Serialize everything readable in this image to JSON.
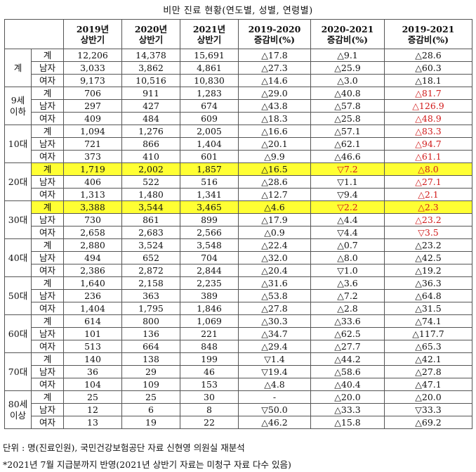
{
  "title": "비만 진료 현황(연도별, 성별, 연령별)",
  "header": {
    "h_2019": "2019년\n상반기",
    "h_2020": "2020년\n상반기",
    "h_2021": "2021년\n상반기",
    "h_c1920": "2019-2020\n증감비(%)",
    "h_c2021": "2020-2021\n증감비(%)",
    "h_c1921": "2019-2021\n증감비(%)"
  },
  "groups": [
    {
      "label": "계",
      "rows": [
        {
          "sub": "계",
          "v2019": "12,206",
          "v2020": "14,378",
          "v2021": "15,691",
          "c1920": "△17.8",
          "c2021": "△9.1",
          "c1921": "△28.6"
        },
        {
          "sub": "남자",
          "v2019": "3,033",
          "v2020": "3,862",
          "v2021": "4,861",
          "c1920": "△27.3",
          "c2021": "△25.9",
          "c1921": "△60.3"
        },
        {
          "sub": "여자",
          "v2019": "9,173",
          "v2020": "10,516",
          "v2021": "10,830",
          "c1920": "△14.6",
          "c2021": "△3.0",
          "c1921": "△18.1"
        }
      ]
    },
    {
      "label": "9세\n이하",
      "rows": [
        {
          "sub": "계",
          "v2019": "706",
          "v2020": "911",
          "v2021": "1,283",
          "c1920": "△29.0",
          "c2021": "△40.8",
          "c1921": "△81.7",
          "red": true
        },
        {
          "sub": "남자",
          "v2019": "297",
          "v2020": "427",
          "v2021": "674",
          "c1920": "△43.8",
          "c2021": "△57.8",
          "c1921": "△126.9",
          "red": true
        },
        {
          "sub": "여자",
          "v2019": "409",
          "v2020": "484",
          "v2021": "609",
          "c1920": "△18.3",
          "c2021": "△25.8",
          "c1921": "△48.9",
          "red": true
        }
      ]
    },
    {
      "label": "10대",
      "rows": [
        {
          "sub": "계",
          "v2019": "1,094",
          "v2020": "1,276",
          "v2021": "2,005",
          "c1920": "△16.6",
          "c2021": "△57.1",
          "c1921": "△83.3",
          "red": true
        },
        {
          "sub": "남자",
          "v2019": "721",
          "v2020": "866",
          "v2021": "1,404",
          "c1920": "△20.1",
          "c2021": "△62.1",
          "c1921": "△94.7",
          "red": true
        },
        {
          "sub": "여자",
          "v2019": "373",
          "v2020": "410",
          "v2021": "601",
          "c1920": "△9.9",
          "c2021": "△46.6",
          "c1921": "△61.1",
          "red": true
        }
      ]
    },
    {
      "label": "20대",
      "rows": [
        {
          "sub": "계",
          "v2019": "1,719",
          "v2020": "2,002",
          "v2021": "1,857",
          "c1920": "△16.5",
          "c2021": "▽7.2",
          "c1921": "△8.0",
          "red": true,
          "hl": true,
          "red2": true
        },
        {
          "sub": "남자",
          "v2019": "406",
          "v2020": "522",
          "v2021": "516",
          "c1920": "△28.6",
          "c2021": "▽1.1",
          "c1921": "△27.1",
          "red": true
        },
        {
          "sub": "여자",
          "v2019": "1,313",
          "v2020": "1,480",
          "v2021": "1,341",
          "c1920": "△12.7",
          "c2021": "▽9.4",
          "c1921": "△2.1",
          "red": true
        }
      ]
    },
    {
      "label": "30대",
      "rows": [
        {
          "sub": "계",
          "v2019": "3,388",
          "v2020": "3,544",
          "v2021": "3,465",
          "c1920": "△4.6",
          "c2021": "▽2.2",
          "c1921": "△2.3",
          "red": true,
          "hl": true,
          "red2": true
        },
        {
          "sub": "남자",
          "v2019": "730",
          "v2020": "861",
          "v2021": "899",
          "c1920": "△17.9",
          "c2021": "△4.4",
          "c1921": "△23.2",
          "red": true
        },
        {
          "sub": "여자",
          "v2019": "2,658",
          "v2020": "2,683",
          "v2021": "2,566",
          "c1920": "△0.9",
          "c2021": "▽4.4",
          "c1921": "▽3.5",
          "red": true
        }
      ]
    },
    {
      "label": "40대",
      "rows": [
        {
          "sub": "계",
          "v2019": "2,880",
          "v2020": "3,524",
          "v2021": "3,548",
          "c1920": "△22.4",
          "c2021": "△0.7",
          "c1921": "△23.2"
        },
        {
          "sub": "남자",
          "v2019": "494",
          "v2020": "652",
          "v2021": "704",
          "c1920": "△32.0",
          "c2021": "△8.0",
          "c1921": "△42.5"
        },
        {
          "sub": "여자",
          "v2019": "2,386",
          "v2020": "2,872",
          "v2021": "2,844",
          "c1920": "△20.4",
          "c2021": "▽1.0",
          "c1921": "△19.2"
        }
      ]
    },
    {
      "label": "50대",
      "rows": [
        {
          "sub": "계",
          "v2019": "1,640",
          "v2020": "2,158",
          "v2021": "2,235",
          "c1920": "△31.6",
          "c2021": "△3.6",
          "c1921": "△36.3"
        },
        {
          "sub": "남자",
          "v2019": "236",
          "v2020": "363",
          "v2021": "389",
          "c1920": "△53.8",
          "c2021": "△7.2",
          "c1921": "△64.8"
        },
        {
          "sub": "여자",
          "v2019": "1,404",
          "v2020": "1,795",
          "v2021": "1,846",
          "c1920": "△27.8",
          "c2021": "△2.8",
          "c1921": "△31.5"
        }
      ]
    },
    {
      "label": "60대",
      "rows": [
        {
          "sub": "계",
          "v2019": "614",
          "v2020": "800",
          "v2021": "1,069",
          "c1920": "△30.3",
          "c2021": "△33.6",
          "c1921": "△74.1"
        },
        {
          "sub": "남자",
          "v2019": "101",
          "v2020": "136",
          "v2021": "221",
          "c1920": "△34.7",
          "c2021": "△62.5",
          "c1921": "△117.7"
        },
        {
          "sub": "여자",
          "v2019": "513",
          "v2020": "664",
          "v2021": "848",
          "c1920": "△29.4",
          "c2021": "△27.7",
          "c1921": "△65.3"
        }
      ]
    },
    {
      "label": "70대",
      "rows": [
        {
          "sub": "계",
          "v2019": "140",
          "v2020": "138",
          "v2021": "199",
          "c1920": "▽1.4",
          "c2021": "△44.2",
          "c1921": "△42.1"
        },
        {
          "sub": "남자",
          "v2019": "36",
          "v2020": "29",
          "v2021": "46",
          "c1920": "▽19.4",
          "c2021": "△58.6",
          "c1921": "△27.8"
        },
        {
          "sub": "여자",
          "v2019": "104",
          "v2020": "109",
          "v2021": "153",
          "c1920": "△4.8",
          "c2021": "△40.4",
          "c1921": "△47.1"
        }
      ]
    },
    {
      "label": "80세\n이상",
      "rows": [
        {
          "sub": "계",
          "v2019": "25",
          "v2020": "25",
          "v2021": "30",
          "c1920": "-",
          "c2021": "△20.0",
          "c1921": "△20.0"
        },
        {
          "sub": "남자",
          "v2019": "12",
          "v2020": "6",
          "v2021": "8",
          "c1920": "▽50.0",
          "c2021": "△33.3",
          "c1921": "▽33.3"
        },
        {
          "sub": "여자",
          "v2019": "13",
          "v2020": "19",
          "v2021": "22",
          "c1920": "△46.2",
          "c2021": "△15.8",
          "c1921": "△69.2"
        }
      ]
    }
  ],
  "footnotes": {
    "unit": "단위 : 명(진료인원), 국민건강보험공단 자료 신현영 의원실 재분석",
    "note": "*2021년 7월 지급분까지 반영(2021년 상반기 자료는 미청구 자료 다수 있음)"
  },
  "colors": {
    "highlight": "#ffff33",
    "red": "#d11a1a"
  }
}
